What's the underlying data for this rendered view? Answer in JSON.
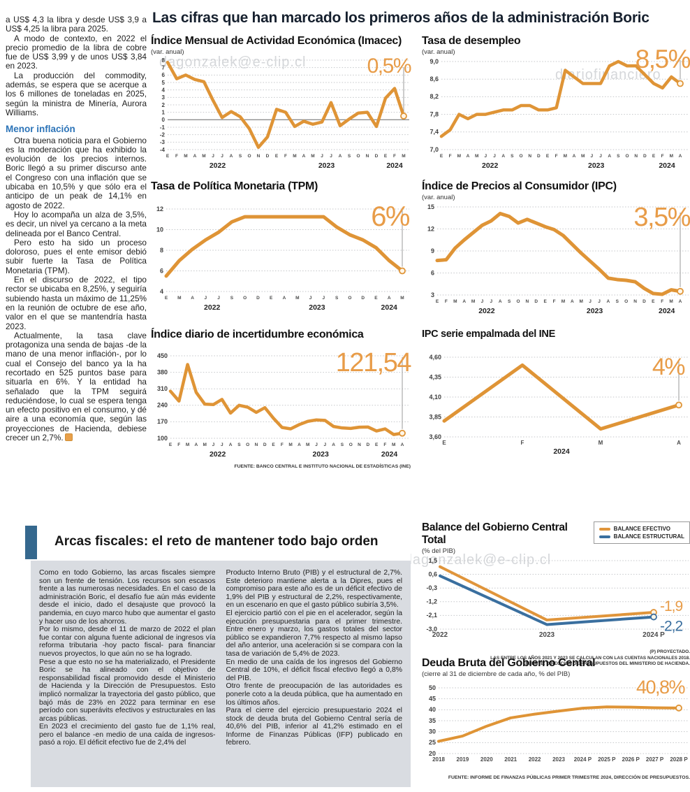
{
  "main_title": "Las cifras que han marcado los primeros años de la administración Boric",
  "watermarks": {
    "wm1": "dagonzalek@e-clip.cl",
    "wm2": "diariofinanciero",
    "wm3": "diariofinanciero#dagonzalek@e-clip.cl"
  },
  "article": {
    "p_first": "a US$ 4,3 la libra y desde US$ 3,9 a US$ 4,25 la libra para 2025.",
    "p_top": [
      "A modo de contexto, en 2022 el precio promedio de la libra de cobre fue de US$ 3,99 y de unos US$ 3,84 en 2023.",
      "La producción del commodity, además, se espera que se acerque a los 6 millones de toneladas en 2025, según la ministra de Minería, Aurora Williams."
    ],
    "subheading": "Menor inflación",
    "p_mid": [
      "Otra buena noticia para el Gobierno es la moderación que ha exhibido la evolución de los precios internos. Boric llegó a su primer discurso ante el Congreso con una inflación que se ubicaba en 10,5% y que sólo era el anticipo de un peak de 14,1% en agosto de 2022.",
      "Hoy lo acompaña un alza de 3,5%, es decir, un nivel ya cercano a la meta delineada por el Banco Central.",
      "Pero esto ha sido un proceso doloroso, pues el ente emisor debió subir fuerte la Tasa de Política Monetaria (TPM).",
      "En el discurso de 2022, el tipo rector se ubicaba en 8,25%, y seguiría subiendo hasta un máximo de 11,25% en la reunión de octubre de ese año, valor en el que se mantendría hasta 2023."
    ],
    "p_last": "Actualmente, la tasa clave protagoniza una senda de bajas -de la mano de una menor inflación-, por lo cual el Consejo del banco ya la ha recortado en 525 puntos base para situarla en 6%. Y la entidad ha señalado que la TPM seguirá reduciéndose, lo cual se espera tenga un efecto positivo en el consumo, y dé aire a una economía que, según las proyecciones de Hacienda, debiese crecer un 2,7%."
  },
  "fiscal": {
    "title": "Arcas fiscales: el reto de mantener todo bajo orden",
    "col1": [
      "Como en todo Gobierno, las arcas fiscales siempre son un frente de tensión. Los recursos son escasos frente a las numerosas necesidades. En el caso de la administración Boric, el desafío fue aún más evidente desde el inicio, dado el desajuste que provocó la pandemia, en cuyo marco hubo que aumentar el gasto y hacer uso de los ahorros.",
      "Por lo mismo, desde el 11 de marzo de 2022 el plan fue contar con alguna fuente adicional de ingresos vía reforma tributaria -hoy pacto fiscal- para financiar nuevos proyectos, lo que aún no se ha logrado.",
      "Pese a que esto no se ha materializado, el Presidente Boric se ha alineado con el objetivo de responsabilidad fiscal promovido desde el Ministerio de Hacienda y la Dirección de Presupuestos. Esto implicó normalizar la trayectoria del gasto público, que bajó más de 23% en 2022 para terminar en ese período con superávits efectivos y estructurales en las arcas públicas.",
      "En 2023 el crecimiento del gasto fue de 1,1% real, pero el balance -en medio de una caída de ingresos-  pasó a rojo. El déficit efectivo fue de 2,4% del"
    ],
    "col2": [
      "Producto Interno Bruto (PIB) y el estructural de 2,7%. Este deterioro mantiene alerta a la Dipres, pues el compromiso para este año es de un déficit efectivo de 1,9% del PIB y estructural de 2,2%, respectivamente, en un escenario en que el gasto público subiría 3,5%.",
      "El ejercicio partió con el pie en el acelerador, según la ejecución presupuestaria para el primer trimestre. Entre enero y marzo, los gastos totales del sector público se expandieron 7,7% respecto al mismo lapso del año anterior, una aceleración si se compara con la tasa de variación de 5,4% de 2023.",
      "En medio de una caída de los ingresos del Gobierno Central de 10%, el déficit fiscal efectivo llegó a 0,8% del PIB.",
      "Otro frente de preocupación de las autoridades es ponerle coto a la deuda pública, que ha aumentado en los últimos años.",
      "Para el cierre del ejercicio presupuestario 2024 el stock de deuda bruta del Gobierno Central sería de 40,6% del PIB, inferior al 41,2% estimado en el Informe de Finanzas Públicas (IFP) publicado en febrero."
    ]
  },
  "chart_data": [
    {
      "id": "imacec",
      "type": "line",
      "title": "Índice Mensual de Actividad Económica (Imacec)",
      "subtitle": "(var. anual)",
      "annotation": "0,5%",
      "pointer": true,
      "zero_line": true,
      "ylim": [
        -4,
        8
      ],
      "y_ticks": [
        "8",
        "7",
        "6",
        "5",
        "4",
        "3",
        "2",
        "1",
        "0",
        "-1",
        "-2",
        "-3",
        "-4"
      ],
      "x_labels": [
        "E",
        "F",
        "M",
        "A",
        "M",
        "J",
        "J",
        "A",
        "S",
        "O",
        "N",
        "D",
        "E",
        "F",
        "M",
        "A",
        "M",
        "J",
        "J",
        "A",
        "S",
        "O",
        "N",
        "D",
        "E",
        "F",
        "M"
      ],
      "years": [
        {
          "label": "2022",
          "from": 0,
          "to": 11
        },
        {
          "label": "2023",
          "from": 12,
          "to": 23
        },
        {
          "label": "2024",
          "from": 24,
          "to": 26
        }
      ],
      "series": [
        {
          "name": "Imacec",
          "color": "#DF9436",
          "values": [
            7.7,
            5.5,
            6.0,
            5.4,
            5.1,
            2.6,
            0.3,
            1.1,
            0.4,
            -1.2,
            -3.7,
            -2.3,
            1.4,
            1.0,
            -0.9,
            -0.2,
            -0.6,
            -0.3,
            2.3,
            -0.8,
            0.1,
            0.9,
            1.0,
            -0.9,
            2.9,
            4.2,
            0.5
          ]
        }
      ]
    },
    {
      "id": "desempleo",
      "type": "line",
      "title": "Tasa de desempleo",
      "subtitle": "(var. anual)",
      "annotation": "8,5%",
      "pointer": true,
      "zero_line": false,
      "ylim": [
        7.0,
        9.0
      ],
      "y_ticks": [
        "9,0",
        "8,6",
        "8,2",
        "7,8",
        "7,4",
        "7,0"
      ],
      "x_labels": [
        "E",
        "F",
        "M",
        "A",
        "M",
        "J",
        "J",
        "A",
        "S",
        "O",
        "N",
        "D",
        "E",
        "F",
        "M",
        "A",
        "M",
        "J",
        "J",
        "A",
        "S",
        "O",
        "N",
        "D",
        "E",
        "F",
        "M",
        "A"
      ],
      "years": [
        {
          "label": "2022",
          "from": 0,
          "to": 11
        },
        {
          "label": "2023",
          "from": 12,
          "to": 23
        },
        {
          "label": "2024",
          "from": 24,
          "to": 27
        }
      ],
      "series": [
        {
          "name": "Tasa de desempleo",
          "color": "#DF9436",
          "values": [
            7.3,
            7.45,
            7.8,
            7.7,
            7.8,
            7.8,
            7.85,
            7.9,
            7.9,
            8.0,
            8.0,
            7.9,
            7.9,
            7.95,
            8.8,
            8.65,
            8.5,
            8.5,
            8.5,
            8.9,
            9.0,
            8.9,
            8.9,
            8.7,
            8.5,
            8.4,
            8.65,
            8.5
          ]
        }
      ]
    },
    {
      "id": "tpm",
      "type": "line",
      "title": "Tasa de Política Monetaria (TPM)",
      "subtitle": "",
      "annotation": "6%",
      "pointer": true,
      "zero_line": false,
      "ylim": [
        4,
        12
      ],
      "y_ticks": [
        "12",
        "10",
        "8",
        "6",
        "4"
      ],
      "x_labels": [
        "E",
        "M",
        "A",
        "J",
        "J",
        "S",
        "O",
        "D",
        "E",
        "A",
        "M",
        "J",
        "J",
        "S",
        "O",
        "D",
        "E",
        "A",
        "M"
      ],
      "years": [
        {
          "label": "2022",
          "from": 0,
          "to": 7
        },
        {
          "label": "2023",
          "from": 8,
          "to": 15
        },
        {
          "label": "2024",
          "from": 16,
          "to": 18
        }
      ],
      "series": [
        {
          "name": "TPM",
          "color": "#DF9436",
          "values": [
            5.5,
            7.0,
            8.1,
            9.0,
            9.75,
            10.75,
            11.25,
            11.25,
            11.25,
            11.25,
            11.25,
            11.25,
            11.25,
            10.25,
            9.5,
            9.0,
            8.25,
            7.0,
            6.0
          ]
        }
      ]
    },
    {
      "id": "ipc",
      "type": "line",
      "title": "Índice de Precios al Consumidor (IPC)",
      "subtitle": "(var. anual)",
      "annotation": "3,5%",
      "pointer": true,
      "zero_line": false,
      "ylim": [
        3,
        15
      ],
      "y_ticks": [
        "15",
        "12",
        "9",
        "6",
        "3"
      ],
      "x_labels": [
        "E",
        "F",
        "M",
        "A",
        "M",
        "J",
        "J",
        "A",
        "S",
        "O",
        "N",
        "D",
        "E",
        "F",
        "M",
        "A",
        "M",
        "J",
        "J",
        "A",
        "S",
        "O",
        "N",
        "D",
        "E",
        "F",
        "M",
        "A"
      ],
      "years": [
        {
          "label": "2022",
          "from": 0,
          "to": 11
        },
        {
          "label": "2023",
          "from": 12,
          "to": 23
        },
        {
          "label": "2024",
          "from": 24,
          "to": 27
        }
      ],
      "series": [
        {
          "name": "IPC",
          "color": "#DF9436",
          "values": [
            7.7,
            7.8,
            9.4,
            10.5,
            11.5,
            12.5,
            13.1,
            14.1,
            13.7,
            12.8,
            13.3,
            12.8,
            12.3,
            11.9,
            11.1,
            9.9,
            8.7,
            7.6,
            6.5,
            5.3,
            5.1,
            5.0,
            4.8,
            3.9,
            3.2,
            3.1,
            3.7,
            3.5
          ]
        }
      ]
    },
    {
      "id": "incertidumbre",
      "type": "line",
      "title": "Índice diario de incertidumbre económica",
      "subtitle": "",
      "annotation": "121,54",
      "pointer": true,
      "zero_line": false,
      "ylim": [
        100,
        450
      ],
      "y_ticks": [
        "450",
        "380",
        "310",
        "240",
        "170",
        "100"
      ],
      "x_labels": [
        "E",
        "F",
        "M",
        "A",
        "M",
        "J",
        "J",
        "A",
        "S",
        "O",
        "N",
        "D",
        "E",
        "F",
        "M",
        "A",
        "M",
        "J",
        "J",
        "A",
        "S",
        "O",
        "N",
        "D",
        "E",
        "F",
        "M",
        "A"
      ],
      "years": [
        {
          "label": "2022",
          "from": 0,
          "to": 11
        },
        {
          "label": "2023",
          "from": 12,
          "to": 23
        },
        {
          "label": "2024",
          "from": 24,
          "to": 27
        }
      ],
      "series": [
        {
          "name": "Incertidumbre económica",
          "color": "#DF9436",
          "values": [
            300,
            258,
            413,
            295,
            245,
            243,
            265,
            207,
            240,
            232,
            210,
            230,
            185,
            146,
            140,
            158,
            172,
            178,
            176,
            150,
            144,
            142,
            147,
            148,
            131,
            140,
            116,
            121.54
          ]
        }
      ],
      "source": "FUENTE: BANCO CENTRAL E INSTITUTO NACIONAL DE ESTADÍSTICAS (INE)"
    },
    {
      "id": "ipc-empalmada",
      "type": "line",
      "title": "IPC serie empalmada del INE",
      "subtitle": "",
      "annotation": "4%",
      "pointer": true,
      "zero_line": false,
      "ylim": [
        3.6,
        4.6
      ],
      "y_ticks": [
        "4,60",
        "4,35",
        "4,10",
        "3,85",
        "3,60"
      ],
      "x_labels": [
        "E",
        "F",
        "M",
        "A"
      ],
      "years": [
        {
          "label": "2024",
          "from": 0,
          "to": 3
        }
      ],
      "series": [
        {
          "name": "IPC empalmada",
          "color": "#DF9436",
          "values": [
            3.8,
            4.5,
            3.7,
            4.0
          ]
        }
      ]
    },
    {
      "id": "balance",
      "type": "line",
      "title": "Balance del Gobierno Central Total",
      "subtitle": "(% del PIB)",
      "pointer": false,
      "zero_line": false,
      "ylim": [
        -3.0,
        1.5
      ],
      "y_ticks": [
        "1,5",
        "0,6",
        "-0,3",
        "-1,2",
        "-2,1",
        "-3,0"
      ],
      "x_labels": [
        "2022",
        "2023",
        "2024 P"
      ],
      "series": [
        {
          "name": "BALANCE EFECTIVO",
          "color": "#E0953B",
          "values": [
            1.1,
            -2.4,
            -1.9
          ]
        },
        {
          "name": "BALANCE ESTRUCTURAL",
          "color": "#3A6F9F",
          "values": [
            0.5,
            -2.7,
            -2.2
          ]
        }
      ],
      "end_labels": [
        {
          "text": "-1,9",
          "color": "#E89C48",
          "dy": -6
        },
        {
          "text": "-2,2",
          "color": "#3A6F9F",
          "dy": 16
        }
      ],
      "notes": [
        "(P) PROYECTADO.",
        "LAS ENTRE LOS AÑOS 2021 Y 2023 SE CALCULAN  CON LAS CUENTAS NACIONALES 2018.",
        "FUENTE: DIRECCIÓN DE PRESUPUESTOS DEL MINISTERIO DE HACIENDA."
      ]
    },
    {
      "id": "deuda",
      "type": "line",
      "title": "Deuda Bruta del Gobierno Central",
      "subtitle": "(cierre al 31 de diciembre de cada año, % del PIB)",
      "annotation": "40,8%",
      "pointer": false,
      "zero_line": false,
      "ylim": [
        20,
        50
      ],
      "y_ticks": [
        "50",
        "45",
        "40",
        "35",
        "30",
        "25",
        "20"
      ],
      "x_labels": [
        "2018",
        "2019",
        "2020",
        "2021",
        "2022",
        "2023",
        "2024 P",
        "2025 P",
        "2026 P",
        "2027 P",
        "2028 P"
      ],
      "series": [
        {
          "name": "Deuda bruta",
          "color": "#DF9436",
          "values": [
            25.6,
            28.0,
            32.5,
            36.3,
            38.0,
            39.4,
            40.7,
            41.3,
            41.2,
            40.9,
            40.8
          ]
        }
      ],
      "source": "FUENTE: INFORME DE FINANZAS PÚBLICAS PRIMER TRIMESTRE 2024, DIRECCIÓN DE PRESUPUESTOS."
    }
  ]
}
